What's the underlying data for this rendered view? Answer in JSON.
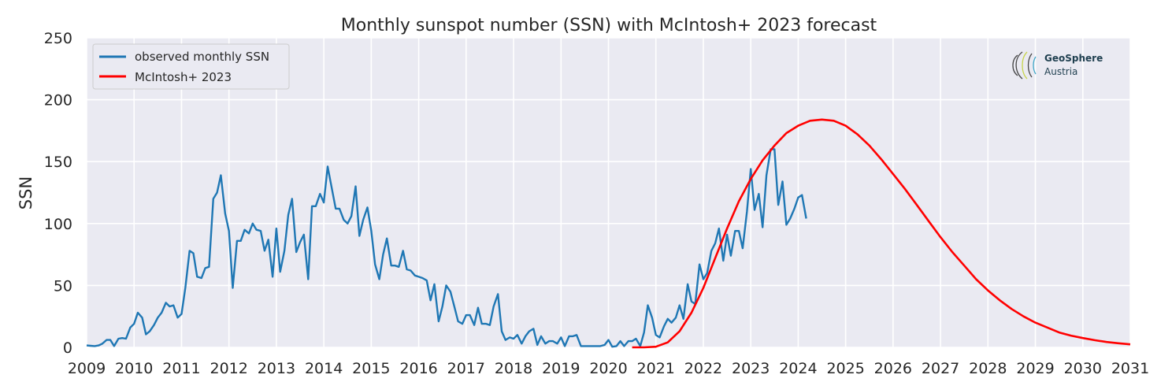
{
  "chart_data": {
    "type": "line",
    "title": "Monthly sunspot number (SSN) with McIntosh+ 2023 forecast",
    "xlabel": "",
    "ylabel": "SSN",
    "xlim": [
      2009,
      2031
    ],
    "ylim": [
      0,
      250
    ],
    "x_ticks": [
      "2009",
      "2010",
      "2011",
      "2012",
      "2013",
      "2014",
      "2015",
      "2016",
      "2017",
      "2018",
      "2019",
      "2020",
      "2021",
      "2022",
      "2023",
      "2024",
      "2025",
      "2026",
      "2027",
      "2028",
      "2029",
      "2030",
      "2031"
    ],
    "y_ticks": [
      "0",
      "50",
      "100",
      "150",
      "200",
      "250"
    ],
    "grid": true,
    "legend_position": "top-left",
    "colors": {
      "observed": "#1f77b4",
      "forecast": "#ff0000",
      "plot_background": "#eaeaf2",
      "grid": "#ffffff"
    },
    "series": [
      {
        "name": "observed monthly SSN",
        "color": "#1f77b4",
        "x": [
          2009.0,
          2009.08,
          2009.17,
          2009.25,
          2009.33,
          2009.42,
          2009.5,
          2009.58,
          2009.67,
          2009.75,
          2009.83,
          2009.92,
          2010.0,
          2010.08,
          2010.17,
          2010.25,
          2010.33,
          2010.42,
          2010.5,
          2010.58,
          2010.67,
          2010.75,
          2010.83,
          2010.92,
          2011.0,
          2011.08,
          2011.17,
          2011.25,
          2011.33,
          2011.42,
          2011.5,
          2011.58,
          2011.67,
          2011.75,
          2011.83,
          2011.92,
          2012.0,
          2012.08,
          2012.17,
          2012.25,
          2012.33,
          2012.42,
          2012.5,
          2012.58,
          2012.67,
          2012.75,
          2012.83,
          2012.92,
          2013.0,
          2013.08,
          2013.17,
          2013.25,
          2013.33,
          2013.42,
          2013.5,
          2013.58,
          2013.67,
          2013.75,
          2013.83,
          2013.92,
          2014.0,
          2014.08,
          2014.17,
          2014.25,
          2014.33,
          2014.42,
          2014.5,
          2014.58,
          2014.67,
          2014.75,
          2014.83,
          2014.92,
          2015.0,
          2015.08,
          2015.17,
          2015.25,
          2015.33,
          2015.42,
          2015.5,
          2015.58,
          2015.67,
          2015.75,
          2015.83,
          2015.92,
          2016.0,
          2016.08,
          2016.17,
          2016.25,
          2016.33,
          2016.42,
          2016.5,
          2016.58,
          2016.67,
          2016.75,
          2016.83,
          2016.92,
          2017.0,
          2017.08,
          2017.17,
          2017.25,
          2017.33,
          2017.42,
          2017.5,
          2017.58,
          2017.67,
          2017.75,
          2017.83,
          2017.92,
          2018.0,
          2018.08,
          2018.17,
          2018.25,
          2018.33,
          2018.42,
          2018.5,
          2018.58,
          2018.67,
          2018.75,
          2018.83,
          2018.92,
          2019.0,
          2019.08,
          2019.17,
          2019.25,
          2019.33,
          2019.42,
          2019.5,
          2019.58,
          2019.67,
          2019.75,
          2019.83,
          2019.92,
          2020.0,
          2020.08,
          2020.17,
          2020.25,
          2020.33,
          2020.42,
          2020.5,
          2020.58,
          2020.67,
          2020.75,
          2020.83,
          2020.92,
          2021.0,
          2021.08,
          2021.17,
          2021.25,
          2021.33,
          2021.42,
          2021.5,
          2021.58,
          2021.67,
          2021.75,
          2021.83,
          2021.92,
          2022.0,
          2022.08,
          2022.17,
          2022.25,
          2022.33,
          2022.42,
          2022.5,
          2022.58,
          2022.67,
          2022.75,
          2022.83,
          2022.92,
          2023.0,
          2023.08,
          2023.17,
          2023.25,
          2023.33,
          2023.42,
          2023.5,
          2023.58,
          2023.67,
          2023.75,
          2023.83,
          2023.92,
          2024.0,
          2024.08,
          2024.17
        ],
        "y": [
          1.5,
          1.3,
          1,
          1.5,
          2.9,
          6,
          6,
          1,
          7,
          7.5,
          7,
          16,
          19,
          28,
          24,
          10.5,
          13,
          18,
          24,
          28,
          36,
          33,
          34,
          24,
          27,
          48,
          78,
          76,
          57,
          56,
          64,
          65,
          120,
          125,
          139,
          108,
          94,
          48,
          86,
          86,
          95,
          92,
          100,
          95,
          94,
          78,
          87,
          57,
          96,
          61,
          78,
          107,
          120,
          77,
          85,
          91,
          55,
          114,
          114,
          124,
          117,
          146,
          128,
          112,
          112,
          103,
          100,
          106,
          130,
          90,
          103,
          113,
          94,
          67,
          55,
          75,
          88,
          66,
          66,
          65,
          78,
          63,
          62,
          58,
          57,
          56,
          54,
          38,
          51,
          21,
          33,
          50,
          45,
          33,
          21,
          19,
          26,
          26,
          18,
          32,
          19,
          19,
          18,
          33,
          43,
          13,
          6,
          8,
          7,
          10,
          3,
          9,
          13,
          15,
          2,
          9,
          3,
          5,
          5,
          3,
          8,
          1,
          9,
          9,
          10,
          1,
          1,
          1,
          1,
          1,
          1,
          2,
          6,
          0.5,
          1,
          5,
          1,
          5,
          5,
          7,
          1,
          12,
          34,
          24,
          10,
          8,
          17,
          23,
          20,
          24,
          34,
          23,
          51,
          37,
          35,
          67,
          55,
          60,
          78,
          84,
          96,
          70,
          91,
          74,
          94,
          94,
          80,
          110,
          144,
          111,
          124,
          97,
          139,
          160,
          160,
          115,
          134,
          99,
          104,
          112,
          121,
          123,
          104
        ]
      },
      {
        "name": "McIntosh+ 2023",
        "color": "#ff0000",
        "x": [
          2020.5,
          2020.75,
          2021.0,
          2021.25,
          2021.5,
          2021.75,
          2022.0,
          2022.25,
          2022.5,
          2022.75,
          2023.0,
          2023.25,
          2023.5,
          2023.75,
          2024.0,
          2024.25,
          2024.5,
          2024.75,
          2025.0,
          2025.25,
          2025.5,
          2025.75,
          2026.0,
          2026.25,
          2026.5,
          2026.75,
          2027.0,
          2027.25,
          2027.5,
          2027.75,
          2028.0,
          2028.25,
          2028.5,
          2028.75,
          2029.0,
          2029.25,
          2029.5,
          2029.75,
          2030.0,
          2030.25,
          2030.5,
          2030.75,
          2031.0
        ],
        "y": [
          0,
          0,
          0.5,
          4,
          13,
          28,
          48,
          72,
          96,
          118,
          136,
          151,
          163,
          173,
          179,
          183,
          184,
          183,
          179,
          172,
          163,
          152,
          140,
          128,
          115,
          102,
          89,
          77,
          66,
          55,
          46,
          38,
          31,
          25,
          20,
          16,
          12,
          9.5,
          7.5,
          5.8,
          4.3,
          3.3,
          2.4
        ]
      }
    ]
  },
  "logo": {
    "name": "GeoSphere",
    "sub": "Austria"
  }
}
